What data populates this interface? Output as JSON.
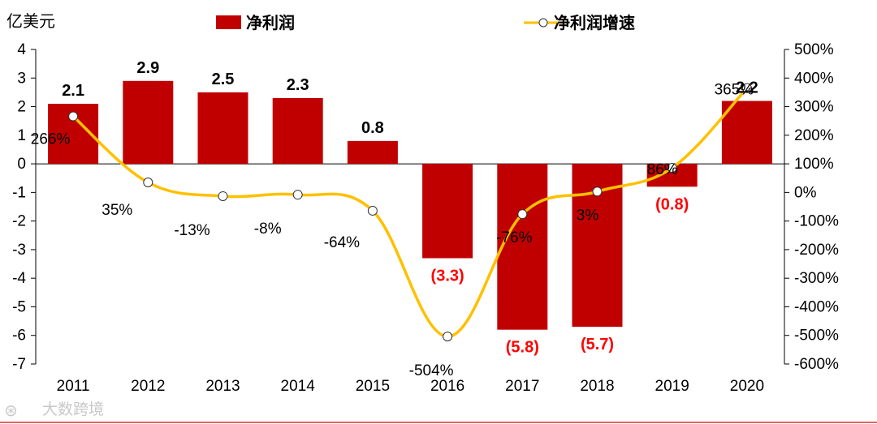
{
  "chart_data": {
    "type": "bar+line",
    "categories": [
      "2011",
      "2012",
      "2013",
      "2014",
      "2015",
      "2016",
      "2017",
      "2018",
      "2019",
      "2020"
    ],
    "y_unit": "亿美元",
    "y_left_ticks": [
      "4",
      "3",
      "2",
      "1",
      "0",
      "-1",
      "-2",
      "-3",
      "-4",
      "-5",
      "-6",
      "-7"
    ],
    "y_left_range": [
      -7,
      4
    ],
    "y_right_ticks": [
      "500%",
      "400%",
      "300%",
      "200%",
      "100%",
      "0%",
      "-100%",
      "-200%",
      "-300%",
      "-400%",
      "-500%",
      "-600%"
    ],
    "y_right_range": [
      -600,
      500
    ],
    "series": [
      {
        "name": "净利润",
        "type": "bar",
        "axis": "left",
        "color": "#c00000",
        "values": [
          2.1,
          2.9,
          2.5,
          2.3,
          0.8,
          -3.3,
          -5.8,
          -5.7,
          -0.8,
          2.2
        ],
        "labels": [
          "2.1",
          "2.9",
          "2.5",
          "2.3",
          "0.8",
          "(3.3)",
          "(5.8)",
          "(5.7)",
          "(0.8)",
          "2.2"
        ]
      },
      {
        "name": "净利润增速",
        "type": "line",
        "axis": "right",
        "color": "#ffc000",
        "values": [
          266,
          35,
          -13,
          -8,
          -64,
          -504,
          -76,
          3,
          86,
          365
        ],
        "labels": [
          "266%",
          "35%",
          "-13%",
          "-8%",
          "-64%",
          "-504%",
          "-76%",
          "3%",
          "86%",
          "365%"
        ]
      }
    ],
    "negative_label_color": "#ff0000"
  },
  "watermark": "大数跨境"
}
